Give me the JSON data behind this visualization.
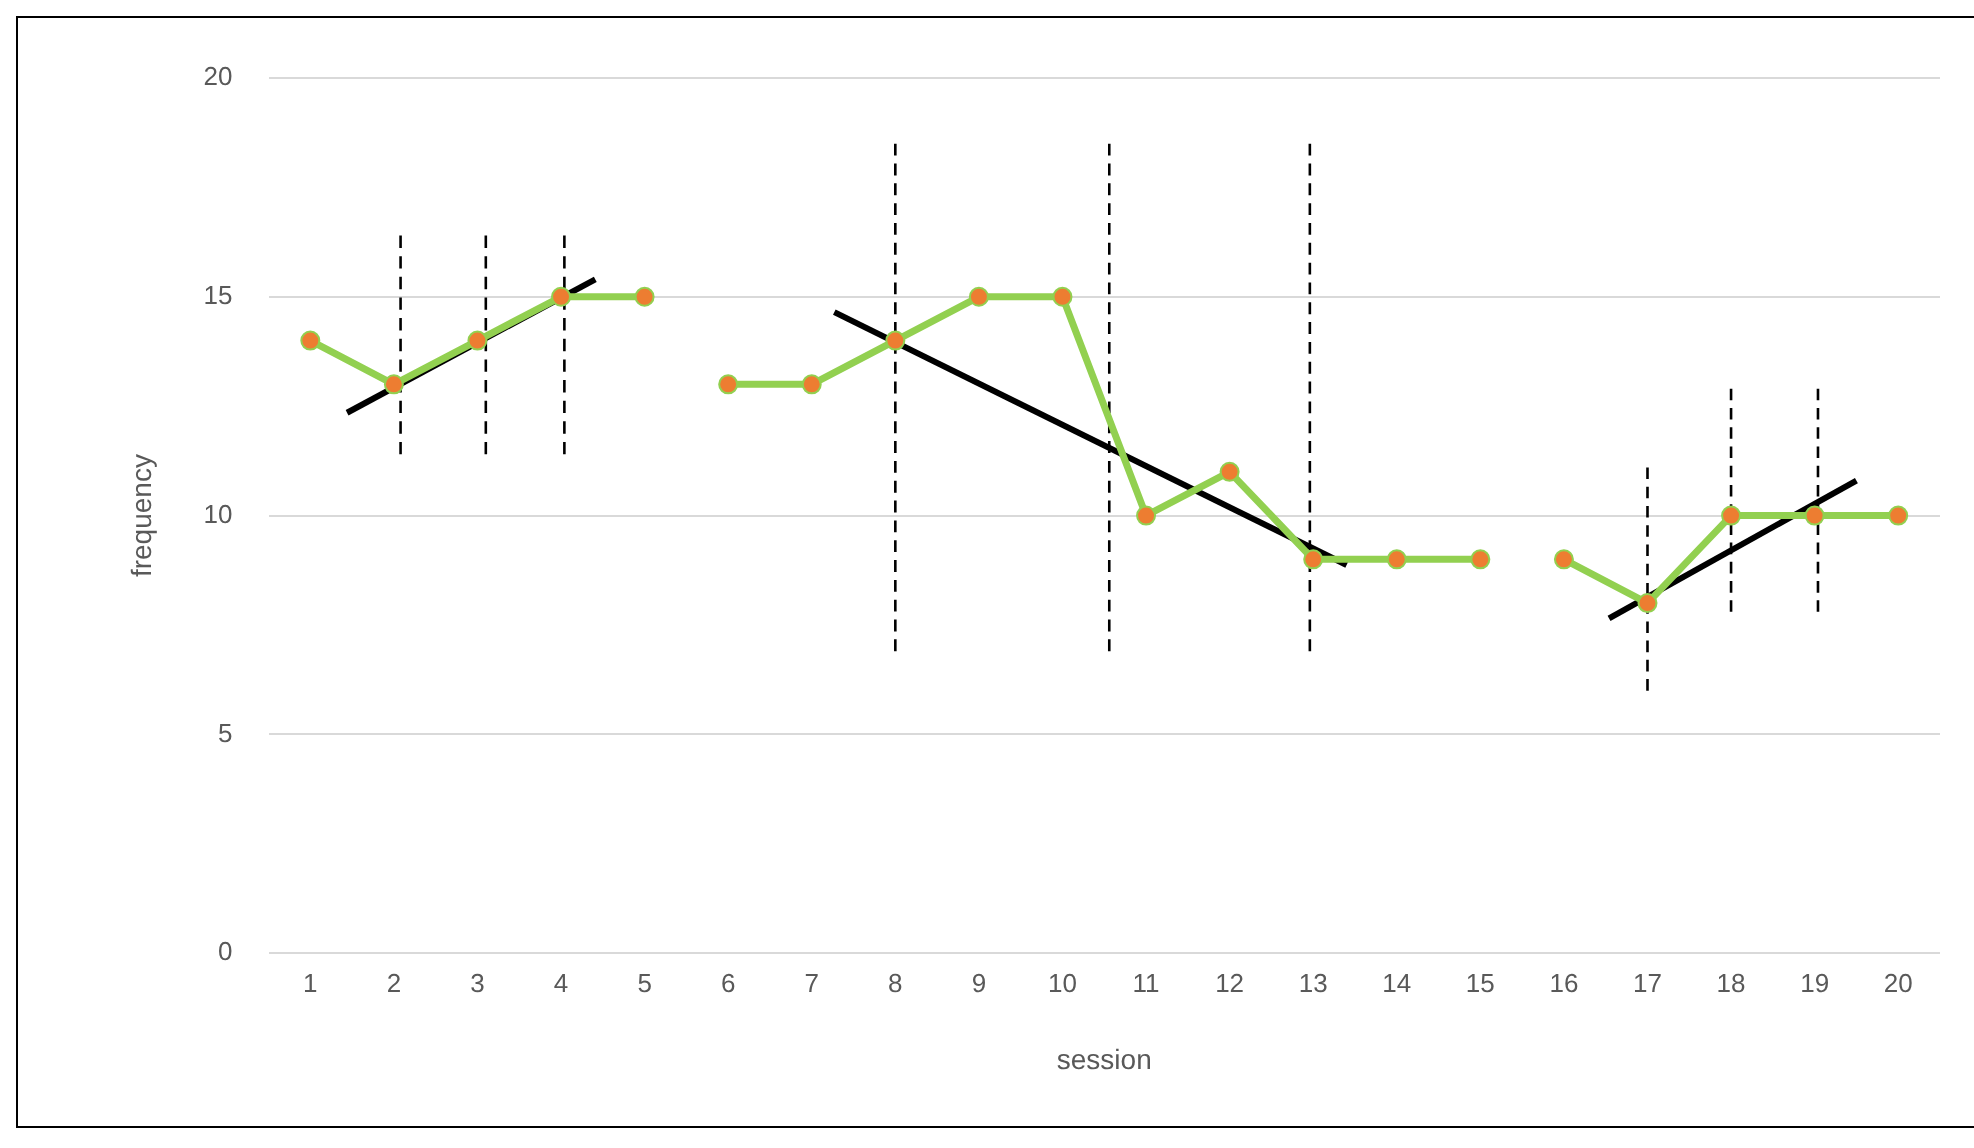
{
  "chart_data": {
    "type": "line",
    "xlabel": "session",
    "ylabel": "frequency",
    "xlim": [
      0.5,
      20.5
    ],
    "xticks": [
      1,
      2,
      3,
      4,
      5,
      6,
      7,
      8,
      9,
      10,
      11,
      12,
      13,
      14,
      15,
      16,
      17,
      18,
      19,
      20
    ],
    "ylim": [
      0,
      20
    ],
    "yticks": [
      0,
      5,
      10,
      15,
      20
    ],
    "grid": "y",
    "marker": "circle",
    "line_style": "solid",
    "series": [
      {
        "color": "#92d050",
        "colors": [
          "#ed7d31",
          "#ed7d31",
          "#ed7d31",
          "#ed7d31",
          "#ed7d31"
        ],
        "x": [
          1,
          2,
          3,
          4,
          5
        ],
        "values": [
          14,
          13,
          14,
          15,
          15
        ]
      },
      {
        "color": "#92d050",
        "colors": [
          "#ed7d31",
          "#ed7d31",
          "#ed7d31",
          "#ed7d31",
          "#ed7d31",
          "#ed7d31",
          "#ed7d31",
          "#ed7d31",
          "#ed7d31",
          "#ed7d31"
        ],
        "x": [
          6,
          7,
          8,
          9,
          10,
          11,
          12,
          13,
          14,
          15
        ],
        "values": [
          13,
          13,
          14,
          15,
          15,
          10,
          11,
          9,
          9,
          9
        ]
      },
      {
        "color": "#92d050",
        "colors": [
          "#ed7d31",
          "#ed7d31",
          "#ed7d31",
          "#ed7d31",
          "#ed7d31"
        ],
        "x": [
          16,
          17,
          18,
          19,
          20
        ],
        "values": [
          9,
          8,
          10,
          10,
          10
        ]
      },
      {
        "type": "line",
        "color": "#000000",
        "marker": "none",
        "x": [
          1.44,
          4.41
        ],
        "values": [
          12.35,
          15.4
        ]
      },
      {
        "type": "line",
        "color": "#000000",
        "marker": "none",
        "x": [
          7.27,
          13.4
        ],
        "values": [
          14.65,
          8.87
        ]
      },
      {
        "type": "line",
        "color": "#000000",
        "marker": "none",
        "x": [
          16.54,
          19.5
        ],
        "values": [
          7.65,
          10.8
        ]
      },
      {
        "type": "line",
        "color": "#000000",
        "marker": "none",
        "line_style": "dashed",
        "x": [
          2.08,
          2.08
        ],
        "values": [
          11.4,
          16.4
        ]
      },
      {
        "type": "line",
        "color": "#000000",
        "marker": "none",
        "line_style": "dashed",
        "x": [
          3.1,
          3.1
        ],
        "values": [
          11.4,
          16.4
        ]
      },
      {
        "type": "line",
        "color": "#000000",
        "marker": "none",
        "line_style": "dashed",
        "x": [
          4.04,
          4.04
        ],
        "values": [
          11.4,
          16.4
        ]
      },
      {
        "type": "line",
        "color": "#000000",
        "marker": "none",
        "line_style": "dashed",
        "x": [
          8,
          8
        ],
        "values": [
          6.9,
          18.5
        ]
      },
      {
        "type": "line",
        "color": "#000000",
        "marker": "none",
        "line_style": "dashed",
        "x": [
          10.56,
          10.56
        ],
        "values": [
          6.9,
          18.5
        ]
      },
      {
        "type": "line",
        "color": "#000000",
        "marker": "none",
        "line_style": "dashed",
        "x": [
          12.96,
          12.96
        ],
        "values": [
          6.9,
          18.5
        ]
      },
      {
        "type": "line",
        "color": "#000000",
        "marker": "none",
        "line_style": "dashed",
        "x": [
          17,
          17
        ],
        "values": [
          6,
          11.1
        ]
      },
      {
        "type": "line",
        "color": "#000000",
        "marker": "none",
        "line_style": "dashed",
        "x": [
          18,
          18
        ],
        "values": [
          7.8,
          12.9
        ]
      },
      {
        "type": "line",
        "color": "#000000",
        "marker": "none",
        "line_style": "dashed",
        "x": [
          19.04,
          19.04
        ],
        "values": [
          7.8,
          12.9
        ]
      }
    ]
  }
}
